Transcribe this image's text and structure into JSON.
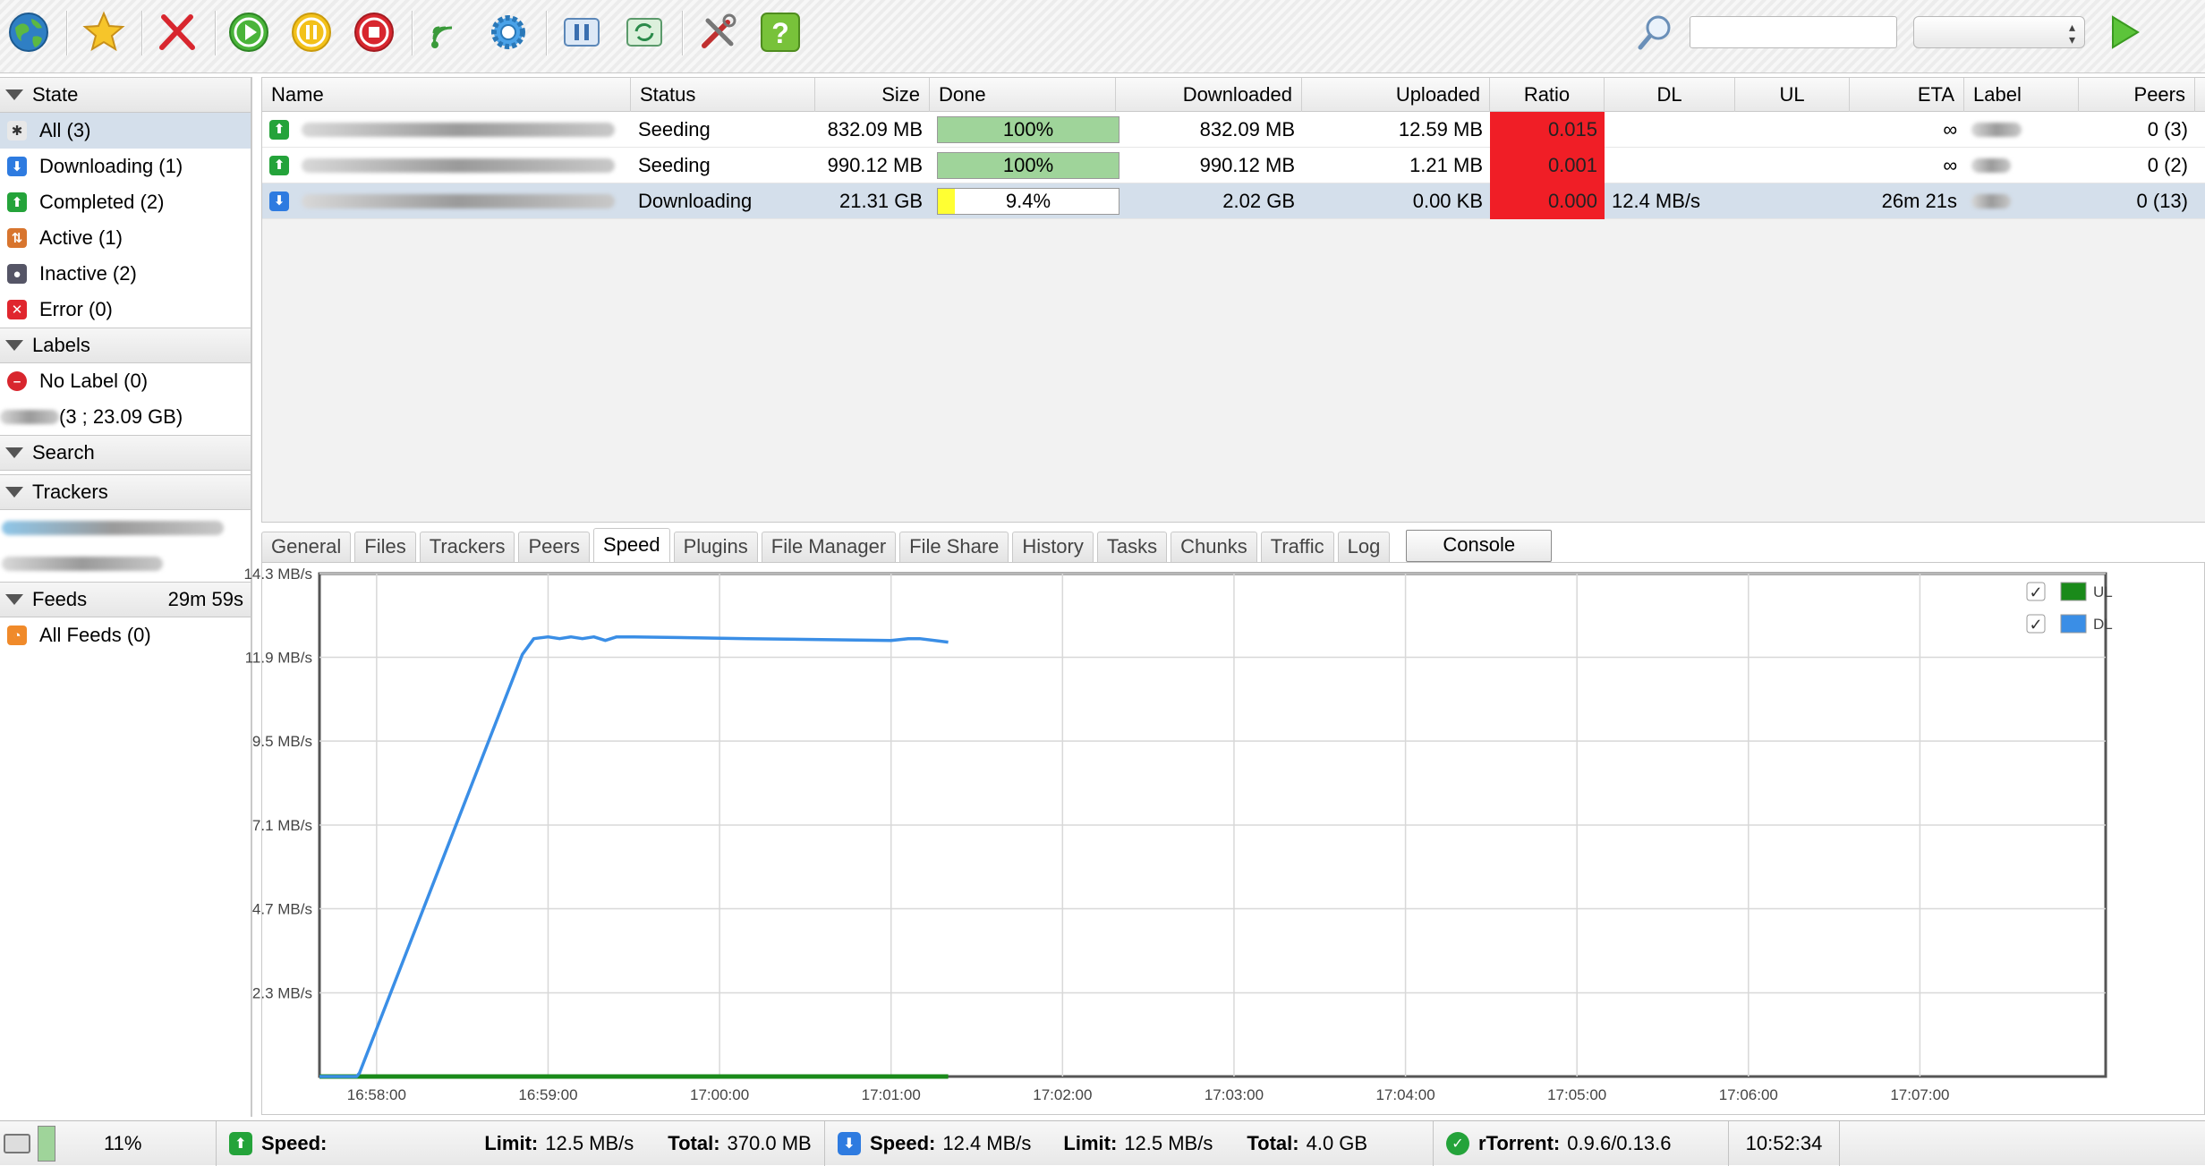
{
  "toolbar": {
    "buttons": [
      "add-torrent",
      "add-rss",
      "remove",
      "start",
      "pause",
      "stop",
      "rss-manager",
      "settings",
      "queue",
      "refresh",
      "tools",
      "help"
    ],
    "search_placeholder": "",
    "search_select_value": ""
  },
  "sidebar": {
    "state_header": "State",
    "state_items": [
      {
        "label": "All (3)",
        "icon": "all-icon",
        "color": "#444444",
        "selected": true
      },
      {
        "label": "Downloading (1)",
        "icon": "download-arrow-icon",
        "color": "#2e7be0"
      },
      {
        "label": "Completed (2)",
        "icon": "upload-arrow-icon",
        "color": "#24a33a"
      },
      {
        "label": "Active (1)",
        "icon": "active-icon",
        "color": "#d8752e"
      },
      {
        "label": "Inactive (2)",
        "icon": "inactive-icon",
        "color": "#555566"
      },
      {
        "label": "Error (0)",
        "icon": "error-icon",
        "color": "#e0262e"
      }
    ],
    "labels_header": "Labels",
    "label_items": [
      {
        "label": "No Label (0)",
        "icon": "no-label-icon",
        "color": "#d8262e"
      },
      {
        "label": "(3 ; 23.09 GB)",
        "icon": "label-blurred",
        "color": "#aaaaaa"
      }
    ],
    "search_header": "Search",
    "trackers_header": "Trackers",
    "feeds_header": "Feeds",
    "feeds_timer": "29m 59s",
    "feed_items": [
      {
        "label": "All Feeds (0)",
        "icon": "rss-icon",
        "color": "#f08a2a"
      }
    ]
  },
  "table": {
    "columns": [
      "Name",
      "Status",
      "Size",
      "Done",
      "Downloaded",
      "Uploaded",
      "Ratio",
      "DL",
      "UL",
      "ETA",
      "Label",
      "Peers"
    ],
    "rows": [
      {
        "status": "Seeding",
        "size": "832.09 MB",
        "done": "100%",
        "done_fraction": 1.0,
        "downloaded": "832.09 MB",
        "uploaded": "12.59 MB",
        "ratio": "0.015",
        "dl": "",
        "ul": "",
        "eta": "∞",
        "peers": "0 (3)",
        "direction": "up"
      },
      {
        "status": "Seeding",
        "size": "990.12 MB",
        "done": "100%",
        "done_fraction": 1.0,
        "downloaded": "990.12 MB",
        "uploaded": "1.21 MB",
        "ratio": "0.001",
        "dl": "",
        "ul": "",
        "eta": "∞",
        "peers": "0 (2)",
        "direction": "up"
      },
      {
        "status": "Downloading",
        "size": "21.31 GB",
        "done": "9.4%",
        "done_fraction": 0.094,
        "downloaded": "2.02 GB",
        "uploaded": "0.00 KB",
        "ratio": "0.000",
        "dl": "12.4 MB/s",
        "ul": "",
        "eta": "26m 21s",
        "peers": "0 (13)",
        "direction": "down",
        "selected": true
      }
    ],
    "colors": {
      "done_complete": "#9fd49a",
      "done_partial": "#ffff33",
      "ratio_low": "#f01e26",
      "selected_row": "#d4dfeb"
    }
  },
  "tabs": {
    "items": [
      "General",
      "Files",
      "Trackers",
      "Peers",
      "Speed",
      "Plugins",
      "File Manager",
      "File Share",
      "History",
      "Tasks",
      "Chunks",
      "Traffic",
      "Log"
    ],
    "active": "Speed",
    "console_label": "Console"
  },
  "chart_data": {
    "type": "line",
    "title": "",
    "xlabel": "",
    "ylabel": "",
    "x_ticks": [
      "16:58:00",
      "16:59:00",
      "17:00:00",
      "17:01:00",
      "17:02:00",
      "17:03:00",
      "17:04:00",
      "17:05:00",
      "17:06:00",
      "17:07:00"
    ],
    "y_ticks": [
      "2.3 MB/s",
      "4.7 MB/s",
      "7.1 MB/s",
      "9.5 MB/s",
      "11.9 MB/s",
      "14.3 MB/s"
    ],
    "y_tick_values": [
      2.38,
      4.77,
      7.15,
      9.54,
      11.92,
      14.3
    ],
    "ylim": [
      0,
      14.3
    ],
    "x_range_seconds": [
      -20,
      605
    ],
    "legend_position": "top-right",
    "grid": true,
    "series": [
      {
        "name": "UL",
        "color": "#1a8a1a",
        "checked": true,
        "points": [
          [
            -20,
            0.0
          ],
          [
            200,
            0.0
          ]
        ]
      },
      {
        "name": "DL",
        "color": "#3a8ee6",
        "points_note": "",
        "checked": true,
        "points": [
          [
            -20,
            0.0
          ],
          [
            -7,
            0.0
          ],
          [
            -6,
            0.1
          ],
          [
            51,
            12.0
          ],
          [
            55,
            12.45
          ],
          [
            60,
            12.5
          ],
          [
            64,
            12.45
          ],
          [
            68,
            12.5
          ],
          [
            72,
            12.45
          ],
          [
            76,
            12.5
          ],
          [
            80,
            12.4
          ],
          [
            84,
            12.5
          ],
          [
            90,
            12.5
          ],
          [
            130,
            12.45
          ],
          [
            180,
            12.4
          ],
          [
            186,
            12.45
          ],
          [
            190,
            12.45
          ],
          [
            200,
            12.35
          ]
        ]
      }
    ]
  },
  "statusbar": {
    "disk_percent": "11%",
    "ul_speed_label": "Speed:",
    "ul_speed_value": "",
    "ul_limit_label": "Limit:",
    "ul_limit_value": "12.5 MB/s",
    "ul_total_label": "Total:",
    "ul_total_value": "370.0 MB",
    "dl_speed_label": "Speed:",
    "dl_speed_value": "12.4 MB/s",
    "dl_limit_label": "Limit:",
    "dl_limit_value": "12.5 MB/s",
    "dl_total_label": "Total:",
    "dl_total_value": "4.0 GB",
    "client_label": "rTorrent:",
    "client_version": "0.9.6/0.13.6",
    "clock": "10:52:34"
  }
}
